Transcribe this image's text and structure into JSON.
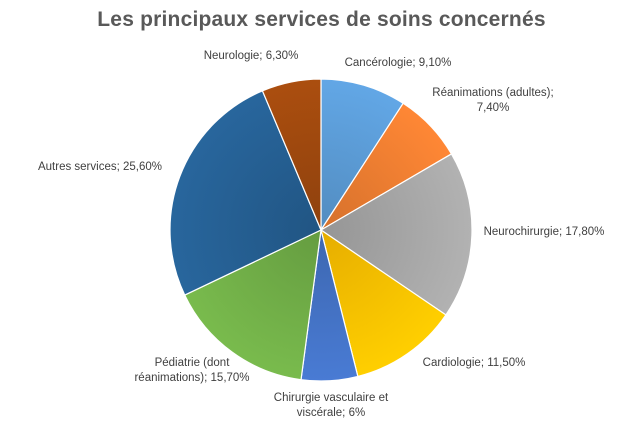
{
  "chart_data": {
    "type": "pie",
    "title": "Les principaux services de soins concernés",
    "start_angle_deg": 0,
    "direction": "clockwise",
    "slices": [
      {
        "name": "Cancérologie",
        "value": 9.1,
        "label_lines": [
          "Cancérologie; 9,10%"
        ],
        "color": "#5b9bd5"
      },
      {
        "name": "Réanimations (adultes)",
        "value": 7.4,
        "label_lines": [
          "Réanimations (adultes);",
          "7,40%"
        ],
        "color": "#ed7d31"
      },
      {
        "name": "Neurochirurgie",
        "value": 17.8,
        "label_lines": [
          "Neurochirurgie; 17,80%"
        ],
        "color": "#a5a5a5"
      },
      {
        "name": "Cardiologie",
        "value": 11.5,
        "label_lines": [
          "Cardiologie; 11,50%"
        ],
        "color": "#ffc000"
      },
      {
        "name": "Chirurgie vasculaire et viscérale",
        "value": 6,
        "label_lines": [
          "Chirurgie vasculaire et",
          "viscérale; 6%"
        ],
        "color": "#4472c4"
      },
      {
        "name": "Pédiatrie (dont réanimations)",
        "value": 15.7,
        "label_lines": [
          "Pédiatrie (dont",
          "réanimations); 15,70%"
        ],
        "color": "#70ad47"
      },
      {
        "name": "Autres services",
        "value": 25.6,
        "label_lines": [
          "Autres services; 25,60%"
        ],
        "color": "#255e91"
      },
      {
        "name": "Neurologie",
        "value": 6.3,
        "label_lines": [
          "Neurologie; 6,30%"
        ],
        "color": "#9e480e"
      }
    ],
    "legend": "none"
  }
}
